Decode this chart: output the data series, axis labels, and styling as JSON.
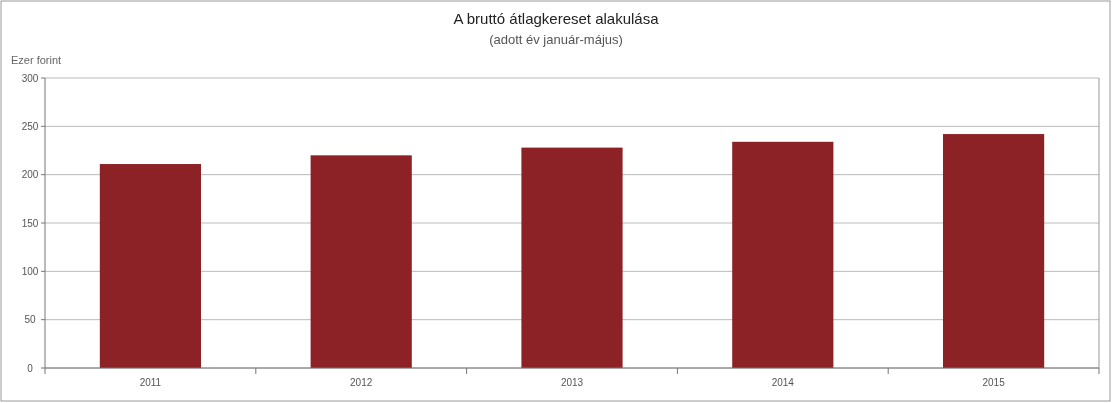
{
  "chart_data": {
    "type": "bar",
    "title": "A bruttó átlagkereset alakulása",
    "subtitle": "(adott év január-május)",
    "ylabel": "Ezer forint",
    "categories": [
      "2011",
      "2012",
      "2013",
      "2014",
      "2015"
    ],
    "values": [
      211,
      220,
      228,
      234,
      242
    ],
    "color": "#8c2126",
    "ylim": [
      0,
      300
    ],
    "yticks": [
      0,
      50,
      100,
      150,
      200,
      250,
      300
    ],
    "grid": "y"
  }
}
